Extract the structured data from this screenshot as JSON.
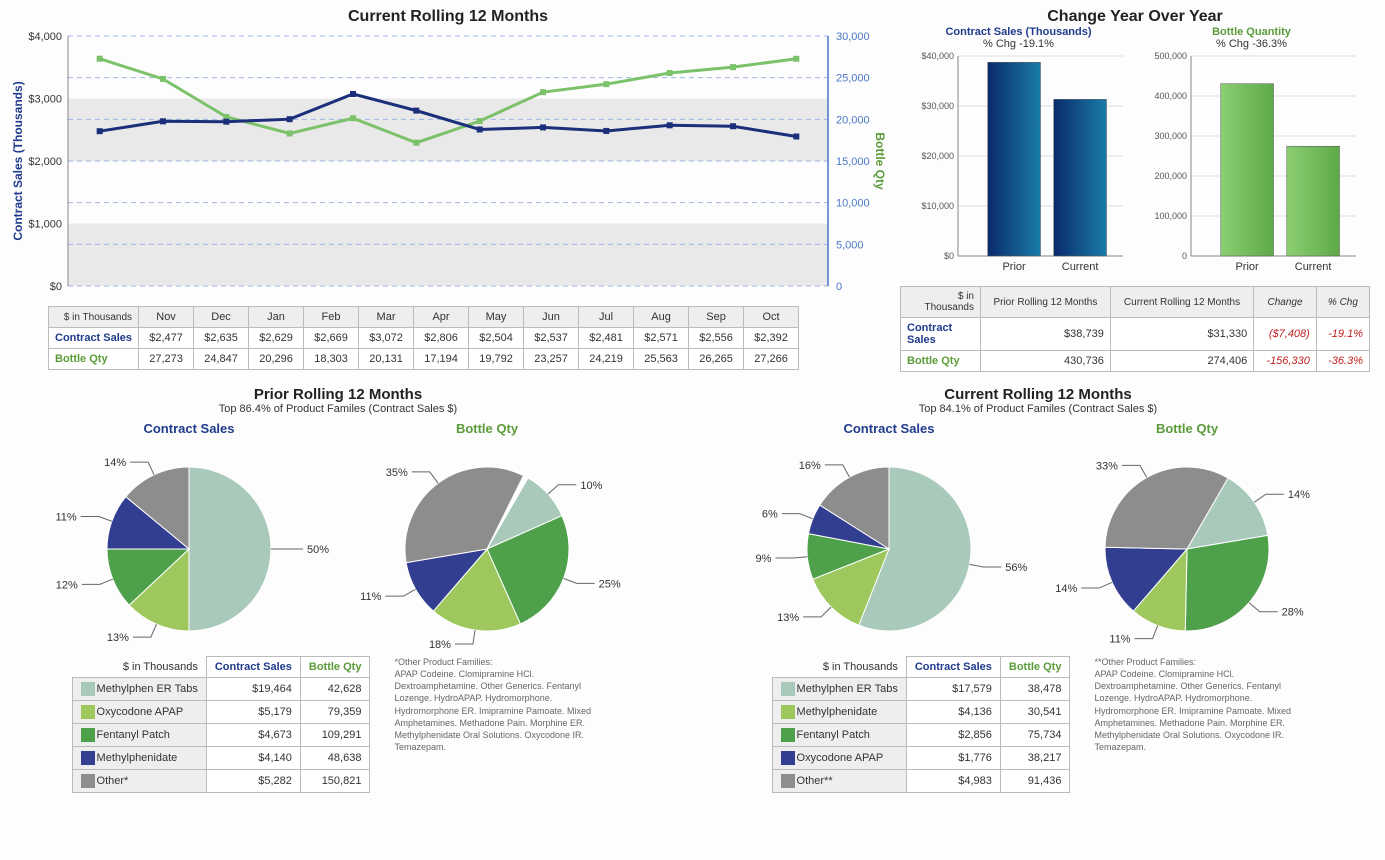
{
  "colors": {
    "navy": "#1f3b8c",
    "navy_line": "#1b2f7a",
    "green": "#7cc26a",
    "green_line": "#7cc26a",
    "grid": "#9db6e0",
    "band": "#e9e9e9",
    "axis": "#4a78c6",
    "text": "#333333",
    "neg": "#c02020",
    "bar_prior_sales_a": "#0a2a6c",
    "bar_prior_sales_b": "#1a7ca8",
    "bar_curr_sales_a": "#0a2a6c",
    "bar_curr_sales_b": "#1a7ca8",
    "bar_prior_qty_a": "#8bcf72",
    "bar_prior_qty_b": "#5ea848",
    "pie_palette": [
      "#a9c9bb",
      "#9ec85e",
      "#4fa04a",
      "#323f90",
      "#8d8d8d"
    ]
  },
  "rolling": {
    "title": "Current Rolling 12 Months",
    "left_axis_label": "Contract Sales (Thousands)",
    "right_axis_label": "Bottle Qty",
    "left_ticks": [
      0,
      1000,
      2000,
      3000,
      4000
    ],
    "left_tick_labels": [
      "$0",
      "$1,000",
      "$2,000",
      "$3,000",
      "$4,000"
    ],
    "right_ticks": [
      0,
      5000,
      10000,
      15000,
      20000,
      25000,
      30000
    ],
    "right_tick_labels": [
      "0",
      "5,000",
      "10,000",
      "15,000",
      "20,000",
      "25,000",
      "30,000"
    ],
    "months": [
      "Nov",
      "Dec",
      "Jan",
      "Feb",
      "Mar",
      "Apr",
      "May",
      "Jun",
      "Jul",
      "Aug",
      "Sep",
      "Oct"
    ],
    "contract_sales": [
      2477,
      2635,
      2629,
      2669,
      3072,
      2806,
      2504,
      2537,
      2481,
      2571,
      2556,
      2392
    ],
    "bottle_qty": [
      27273,
      24847,
      20296,
      18303,
      20131,
      17194,
      19792,
      23257,
      24219,
      25563,
      26265,
      27266
    ],
    "table_header_units": "$ in Thousands",
    "row_labels": {
      "sales": "Contract Sales",
      "qty": "Bottle Qty"
    },
    "sales_fmt": [
      "$2,477",
      "$2,635",
      "$2,629",
      "$2,669",
      "$3,072",
      "$2,806",
      "$2,504",
      "$2,537",
      "$2,481",
      "$2,571",
      "$2,556",
      "$2,392"
    ],
    "qty_fmt": [
      "27,273",
      "24,847",
      "20,296",
      "18,303",
      "20,131",
      "17,194",
      "19,792",
      "23,257",
      "24,219",
      "25,563",
      "26,265",
      "27,266"
    ]
  },
  "yoy": {
    "title": "Change Year Over Year",
    "sales": {
      "title": "Contract Sales (Thousands)",
      "pct_label": "% Chg -19.1%",
      "ylim": [
        0,
        40000
      ],
      "yticks": [
        "$0",
        "$10,000",
        "$20,000",
        "$30,000",
        "$40,000"
      ],
      "prior": 38739,
      "current": 31330,
      "cat_labels": [
        "Prior",
        "Current"
      ]
    },
    "qty": {
      "title": "Bottle Quantity",
      "pct_label": "% Chg -36.3%",
      "ylim": [
        0,
        500000
      ],
      "yticks": [
        "0",
        "100,000",
        "200,000",
        "300,000",
        "400,000",
        "500,000"
      ],
      "prior": 430736,
      "current": 274406,
      "cat_labels": [
        "Prior",
        "Current"
      ]
    },
    "table": {
      "units": "$ in Thousands",
      "cols": [
        "Prior Rolling 12 Months",
        "Current Rolling 12 Months",
        "Change",
        "% Chg"
      ],
      "rows": [
        {
          "label": "Contract Sales",
          "class": "navy",
          "cells": [
            "$38,739",
            "$31,330",
            "($7,408)",
            "-19.1%"
          ],
          "neg": [
            false,
            false,
            true,
            true
          ]
        },
        {
          "label": "Bottle Qty",
          "class": "green",
          "cells": [
            "430,736",
            "274,406",
            "-156,330",
            "-36.3%"
          ],
          "neg": [
            false,
            false,
            true,
            true
          ]
        }
      ]
    }
  },
  "prior_pie": {
    "title": "Prior Rolling 12 Months",
    "subtitle": "Top 86.4% of Product Familes (Contract Sales $)",
    "sales": {
      "title": "Contract Sales",
      "pct": [
        50,
        13,
        12,
        11,
        14
      ],
      "labels": [
        "50%",
        "13%",
        "12%",
        "11%",
        "14%"
      ]
    },
    "qty": {
      "title": "Bottle Qty",
      "pct": [
        10,
        25,
        18,
        11,
        35
      ],
      "order_colors": [
        "#a9c9bb",
        "#4fa04a",
        "#9ec85e",
        "#323f90",
        "#8d8d8d"
      ],
      "labels": [
        "10%",
        "25%",
        "18%",
        "11%",
        "35%"
      ]
    },
    "table": {
      "units": "$ in Thousands",
      "cols": [
        "Contract Sales",
        "Bottle Qty"
      ],
      "rows": [
        {
          "color": "#a9c9bb",
          "name": "Methylphen ER Tabs",
          "cs": "$19,464",
          "bq": "42,628"
        },
        {
          "color": "#9ec85e",
          "name": "Oxycodone APAP",
          "cs": "$5,179",
          "bq": "79,359"
        },
        {
          "color": "#4fa04a",
          "name": "Fentanyl Patch",
          "cs": "$4,673",
          "bq": "109,291"
        },
        {
          "color": "#323f90",
          "name": "Methylphenidate",
          "cs": "$4,140",
          "bq": "48,638"
        },
        {
          "color": "#8d8d8d",
          "name": "Other*",
          "cs": "$5,282",
          "bq": "150,821"
        }
      ]
    },
    "footnote_title": "*Other Product Families:",
    "footnote": "APAP Codeine. Clomipramine HCl. Dextroamphetamine. Other Generics. Fentanyl Lozenge. HydroAPAP. Hydromorphone. Hydromorphone ER. Imipramine Pamoate. Mixed Amphetamines. Methadone Pain. Morphine ER. Methylphenidate Oral Solutions. Oxycodone IR. Temazepam."
  },
  "curr_pie": {
    "title": "Current Rolling 12 Months",
    "subtitle": "Top 84.1% of Product Familes (Contract Sales $)",
    "sales": {
      "title": "Contract Sales",
      "pct": [
        56,
        13,
        9,
        6,
        16
      ],
      "labels": [
        "56%",
        "13%",
        "9%",
        "6%",
        "16%"
      ]
    },
    "qty": {
      "title": "Bottle Qty",
      "pct": [
        14,
        28,
        11,
        14,
        33
      ],
      "order_colors": [
        "#a9c9bb",
        "#4fa04a",
        "#9ec85e",
        "#323f90",
        "#8d8d8d"
      ],
      "labels": [
        "14%",
        "28%",
        "11%",
        "14%",
        "33%"
      ]
    },
    "table": {
      "units": "$ in Thousands",
      "cols": [
        "Contract Sales",
        "Bottle Qty"
      ],
      "rows": [
        {
          "color": "#a9c9bb",
          "name": "Methylphen ER Tabs",
          "cs": "$17,579",
          "bq": "38,478"
        },
        {
          "color": "#9ec85e",
          "name": "Methylphenidate",
          "cs": "$4,136",
          "bq": "30,541"
        },
        {
          "color": "#4fa04a",
          "name": "Fentanyl Patch",
          "cs": "$2,856",
          "bq": "75,734"
        },
        {
          "color": "#323f90",
          "name": "Oxycodone APAP",
          "cs": "$1,776",
          "bq": "38,217"
        },
        {
          "color": "#8d8d8d",
          "name": "Other**",
          "cs": "$4,983",
          "bq": "91,436"
        }
      ]
    },
    "footnote_title": "**Other Product Families:",
    "footnote": "APAP Codeine. Clomipramine HCl. Dextroamphetamine. Other Generics. Fentanyl Lozenge. HydroAPAP. Hydromorphone. Hydromorphone ER. Imipramine Pamoate. Mixed Amphetamines. Methadone Pain. Morphine ER. Methylphenidate Oral Solutions. Oxycodone IR. Temazepam."
  }
}
